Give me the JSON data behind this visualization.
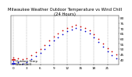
{
  "title": "Milwaukee Weather Outdoor Temperature vs Wind Chill\n(24 Hours)",
  "title_fontsize": 3.8,
  "title_color": "#000000",
  "bg_color": "#ffffff",
  "plot_bg": "#ffffff",
  "grid_color": "#888888",
  "x_hours": [
    0,
    1,
    2,
    3,
    4,
    5,
    6,
    7,
    8,
    9,
    10,
    11,
    12,
    13,
    14,
    15,
    16,
    17,
    18,
    19,
    20,
    21,
    22,
    23
  ],
  "temp": [
    42,
    41,
    40,
    41,
    44,
    47,
    50,
    54,
    58,
    62,
    65,
    68,
    70,
    72,
    73,
    72,
    70,
    68,
    64,
    60,
    55,
    51,
    48,
    45
  ],
  "windchill": [
    38,
    37,
    36,
    37,
    40,
    43,
    46,
    50,
    54,
    58,
    61,
    64,
    67,
    69,
    70,
    69,
    67,
    65,
    61,
    57,
    52,
    48,
    44,
    41
  ],
  "temp_color": "#cc0000",
  "windchill_color": "#0000cc",
  "dot_size": 1.5,
  "ylim": [
    35,
    82
  ],
  "yticks": [
    40,
    45,
    50,
    55,
    60,
    65,
    70,
    75,
    80
  ],
  "ytick_labels": [
    "40",
    "45",
    "50",
    "55",
    "60",
    "65",
    "70",
    "75",
    "80"
  ],
  "ytick_fontsize": 3.0,
  "xtick_fontsize": 3.0,
  "xtick_vals": [
    0,
    3,
    6,
    9,
    12,
    15,
    18,
    21
  ],
  "xtick_labels": [
    "0",
    "3",
    "6",
    "9",
    "12",
    "15",
    "18",
    "21"
  ],
  "legend_temp_label": "Outdoor Temp",
  "legend_wc_label": "Wind Chill",
  "legend_fontsize": 2.8,
  "vgrid_positions": [
    0,
    3,
    6,
    9,
    12,
    15,
    18,
    21
  ]
}
